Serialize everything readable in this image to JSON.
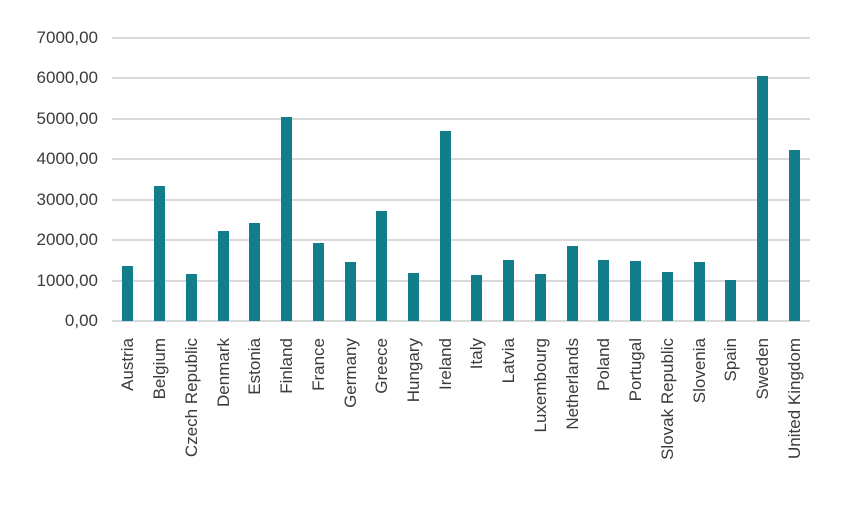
{
  "chart_data": {
    "type": "bar",
    "title": "",
    "xlabel": "",
    "ylabel": "",
    "categories": [
      "Austria",
      "Belgium",
      "Czech Republic",
      "Denmark",
      "Estonia",
      "Finland",
      "France",
      "Germany",
      "Greece",
      "Hungary",
      "Ireland",
      "Italy",
      "Latvia",
      "Luxembourg",
      "Netherlands",
      "Poland",
      "Portugal",
      "Slovak Republic",
      "Slovenia",
      "Spain",
      "Sweden",
      "United Kingdom"
    ],
    "values": [
      1350,
      3330,
      1170,
      2230,
      2420,
      5050,
      1920,
      1450,
      2720,
      1200,
      4700,
      1150,
      1520,
      1170,
      1860,
      1520,
      1480,
      1210,
      1470,
      1010,
      6050,
      4240
    ],
    "ylim": [
      0,
      7000
    ],
    "yticks": [
      {
        "value": 0,
        "label": "0,00"
      },
      {
        "value": 1000,
        "label": "1000,00"
      },
      {
        "value": 2000,
        "label": "2000,00"
      },
      {
        "value": 3000,
        "label": "3000,00"
      },
      {
        "value": 4000,
        "label": "4000,00"
      },
      {
        "value": 5000,
        "label": "5000,00"
      },
      {
        "value": 6000,
        "label": "6000,00"
      },
      {
        "value": 7000,
        "label": "7000,00"
      }
    ],
    "grid": true,
    "legend": false,
    "legend_position": "none",
    "bar_color": "#127e8a",
    "gridline_color": "#d9d9d9",
    "label_color": "#3b3b3b"
  }
}
